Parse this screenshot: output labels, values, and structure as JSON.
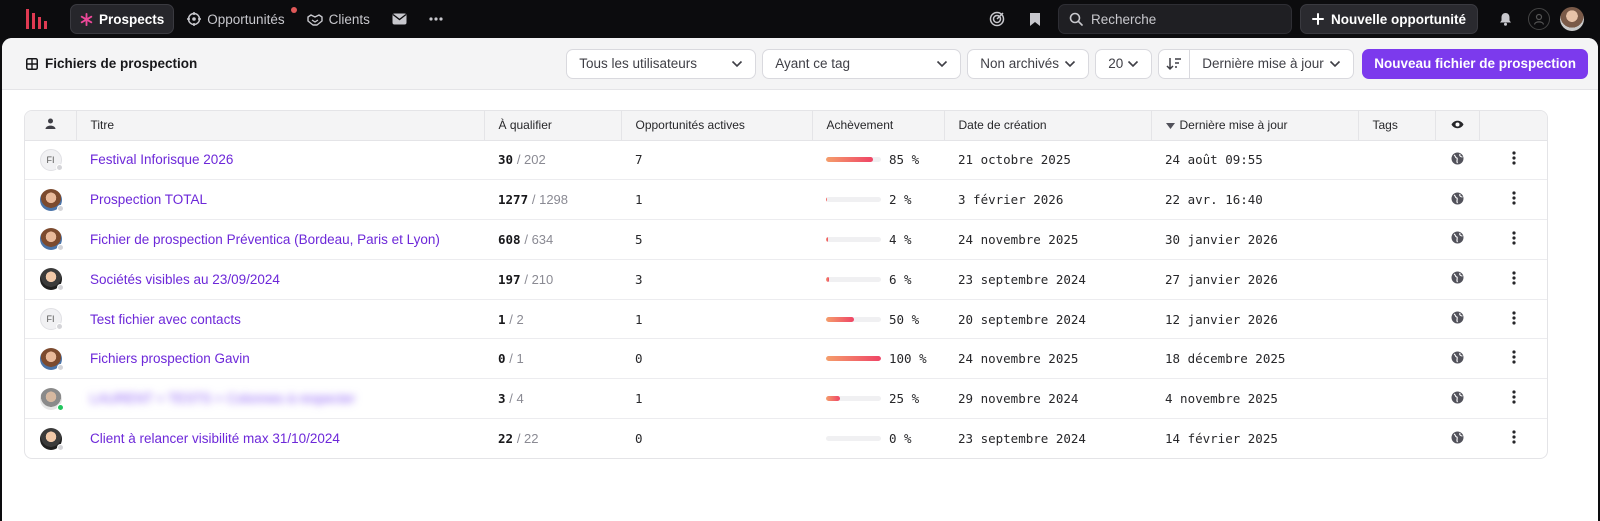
{
  "nav": {
    "items": [
      {
        "label": "Prospects",
        "icon": "asterisk-icon",
        "active": true
      },
      {
        "label": "Opportunités",
        "icon": "target-icon",
        "notification": true
      },
      {
        "label": "Clients",
        "icon": "handshake-icon"
      }
    ],
    "search_placeholder": "Recherche",
    "new_opportunity_label": "Nouvelle opportunité"
  },
  "toolbar": {
    "title": "Fichiers de prospection",
    "filter_users": "Tous les utilisateurs",
    "filter_tag": "Ayant ce tag",
    "filter_archive": "Non archivés",
    "page_size": "20",
    "sort_field": "Dernière mise à jour",
    "new_file_label": "Nouveau fichier de prospection"
  },
  "table": {
    "headers": {
      "title": "Titre",
      "to_qualify": "À qualifier",
      "active_opps": "Opportunités actives",
      "achievement": "Achèvement",
      "created": "Date de création",
      "updated": "Dernière mise à jour",
      "tags": "Tags"
    },
    "rows": [
      {
        "avatar": "FI",
        "title": "Festival Inforisque 2026",
        "q_done": "30",
        "q_total": "/ 202",
        "active": "7",
        "pct": 85,
        "pct_label": "85 %",
        "created": "21 octobre 2025",
        "updated": "24 août 09:55"
      },
      {
        "avatar": "photo1",
        "title": "Prospection TOTAL",
        "q_done": "1277",
        "q_total": "/ 1298",
        "active": "1",
        "pct": 2,
        "pct_label": "2 %",
        "created": "3 février 2026",
        "updated": "22 avr. 16:40"
      },
      {
        "avatar": "photo1",
        "title": "Fichier de prospection Préventica (Bordeau, Paris et Lyon)",
        "q_done": "608",
        "q_total": "/ 634",
        "active": "5",
        "pct": 4,
        "pct_label": "4 %",
        "created": "24 novembre 2025",
        "updated": "30 janvier 2026"
      },
      {
        "avatar": "photo2",
        "title": "Sociétés visibles au 23/09/2024",
        "q_done": "197",
        "q_total": "/ 210",
        "active": "3",
        "pct": 6,
        "pct_label": "6 %",
        "created": "23 septembre 2024",
        "updated": "27 janvier 2026"
      },
      {
        "avatar": "FI",
        "title": "Test fichier avec contacts",
        "q_done": "1",
        "q_total": "/ 2",
        "active": "1",
        "pct": 50,
        "pct_label": "50 %",
        "created": "20 septembre 2024",
        "updated": "12 janvier 2026"
      },
      {
        "avatar": "photo1",
        "title": "Fichiers prospection Gavin",
        "q_done": "0",
        "q_total": "/ 1",
        "active": "0",
        "pct": 100,
        "pct_label": "100 %",
        "created": "24 novembre 2025",
        "updated": "18 décembre 2025"
      },
      {
        "avatar": "photo3",
        "online": true,
        "blurred": true,
        "title": "LAURENT + TESTS + Colonnes à respecter",
        "q_done": "3",
        "q_total": "/ 4",
        "active": "1",
        "pct": 25,
        "pct_label": "25 %",
        "created": "29 novembre 2024",
        "updated": "4 novembre 2025"
      },
      {
        "avatar": "photo2",
        "title": "Client à relancer visibilité max 31/10/2024",
        "q_done": "22",
        "q_total": "/ 22",
        "active": "0",
        "pct": 0,
        "pct_label": "0 %",
        "created": "23 septembre 2024",
        "updated": "14 février 2025"
      }
    ]
  },
  "colors": {
    "accent": "#7c3aed",
    "link": "#6d28d9",
    "bar_start": "#f59e6b",
    "bar_end": "#ef4466"
  }
}
